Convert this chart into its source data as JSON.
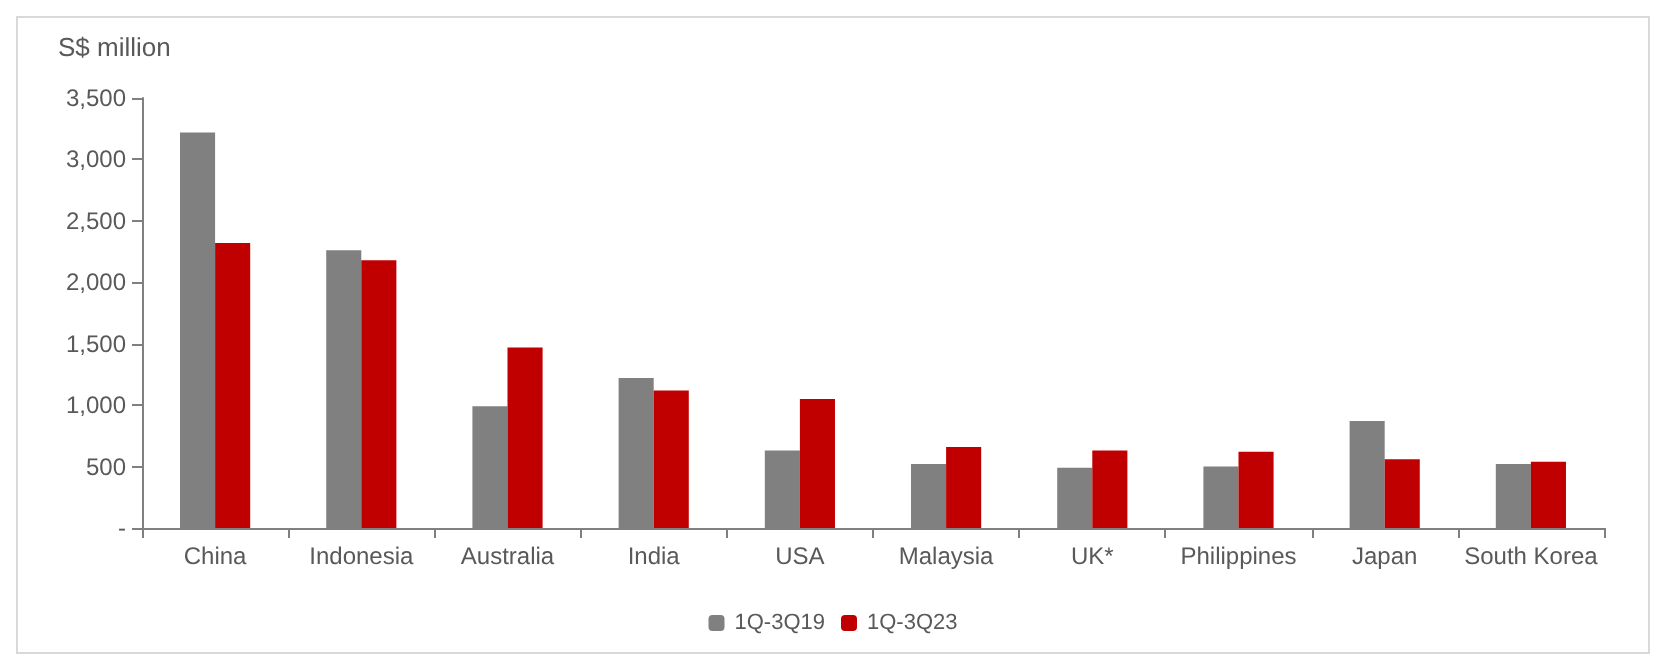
{
  "chart_data": {
    "type": "bar",
    "ylabel": "S$ million",
    "categories": [
      "China",
      "Indonesia",
      "Australia",
      "India",
      "USA",
      "Malaysia",
      "UK*",
      "Philippines",
      "Japan",
      "South Korea"
    ],
    "series": [
      {
        "name": "1Q-3Q19",
        "color": "#808080",
        "values": [
          3220,
          2260,
          990,
          1220,
          630,
          520,
          490,
          500,
          870,
          520
        ]
      },
      {
        "name": "1Q-3Q23",
        "color": "#c00000",
        "values": [
          2320,
          2180,
          1470,
          1120,
          1050,
          660,
          630,
          620,
          560,
          540
        ]
      }
    ],
    "ylim": [
      0,
      3500
    ],
    "yticks": [
      {
        "value": 0,
        "label": "-"
      },
      500,
      {
        "value": 1000,
        "label": "1,000"
      },
      {
        "value": 1500,
        "label": "1,500"
      },
      {
        "value": 2000,
        "label": "2,000"
      },
      {
        "value": 2500,
        "label": "2,500"
      },
      {
        "value": 3000,
        "label": "3,000"
      },
      {
        "value": 3500,
        "label": "3,500"
      }
    ],
    "grid": false,
    "legend": "bottom"
  }
}
